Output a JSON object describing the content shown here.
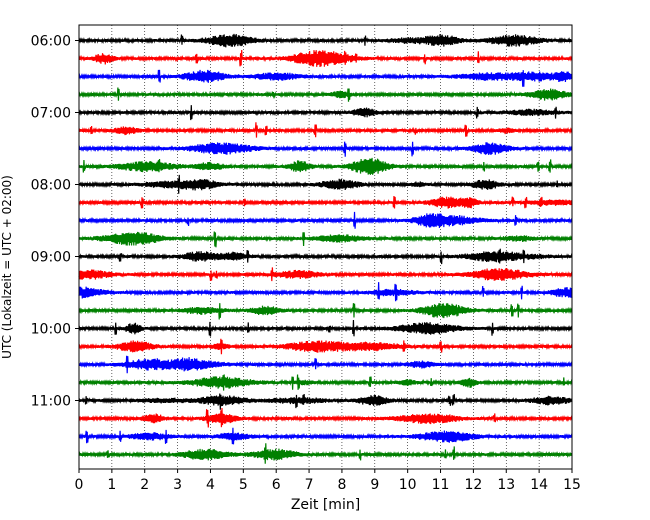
{
  "chart_data": {
    "type": "line",
    "title": "",
    "xlabel": "Zeit  [min]",
    "ylabel": "UTC (Lokalzeit = UTC + 02:00)",
    "xlim": [
      0,
      15
    ],
    "x_ticks": [
      "0",
      "1",
      "2",
      "3",
      "4",
      "5",
      "6",
      "7",
      "8",
      "9",
      "10",
      "11",
      "12",
      "13",
      "14",
      "15"
    ],
    "y_tick_labels": [
      "06:00",
      "07:00",
      "08:00",
      "09:00",
      "10:00",
      "11:00"
    ],
    "grid": "vertical dotted",
    "trace_colors": [
      "#000000",
      "#ff0000",
      "#0000ff",
      "#008000"
    ],
    "traces": [
      {
        "start": "06:00",
        "color": "#000000"
      },
      {
        "start": "06:15",
        "color": "#ff0000"
      },
      {
        "start": "06:30",
        "color": "#0000ff"
      },
      {
        "start": "06:45",
        "color": "#008000"
      },
      {
        "start": "07:00",
        "color": "#000000"
      },
      {
        "start": "07:15",
        "color": "#ff0000"
      },
      {
        "start": "07:30",
        "color": "#0000ff"
      },
      {
        "start": "07:45",
        "color": "#008000"
      },
      {
        "start": "08:00",
        "color": "#000000"
      },
      {
        "start": "08:15",
        "color": "#ff0000"
      },
      {
        "start": "08:30",
        "color": "#0000ff"
      },
      {
        "start": "08:45",
        "color": "#008000"
      },
      {
        "start": "09:00",
        "color": "#000000"
      },
      {
        "start": "09:15",
        "color": "#ff0000"
      },
      {
        "start": "09:30",
        "color": "#0000ff"
      },
      {
        "start": "09:45",
        "color": "#008000"
      },
      {
        "start": "10:00",
        "color": "#000000"
      },
      {
        "start": "10:15",
        "color": "#ff0000"
      },
      {
        "start": "10:30",
        "color": "#0000ff"
      },
      {
        "start": "10:45",
        "color": "#008000"
      },
      {
        "start": "11:00",
        "color": "#000000"
      },
      {
        "start": "11:15",
        "color": "#ff0000"
      },
      {
        "start": "11:30",
        "color": "#0000ff"
      },
      {
        "start": "11:45",
        "color": "#008000"
      }
    ]
  }
}
